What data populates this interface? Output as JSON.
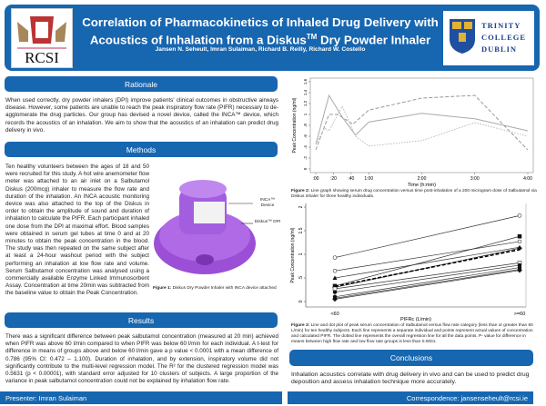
{
  "header": {
    "title_line1": "Correlation of Pharmacokinetics of Inhaled Drug Delivery with",
    "title_line2_pre": "Acoustics of Inhalation from a Diskus",
    "title_tm": "TM",
    "title_line2_post": " Dry Powder Inhaler",
    "authors": "Jansen N. Seheult, Imran Sulaiman, Richard B. Reilly, Richard W. Costello",
    "logo_left": "RCSI",
    "logo_right": [
      "TRINITY",
      "COLLEGE",
      "DUBLIN"
    ]
  },
  "rationale": {
    "heading": "Rationale",
    "text": "When used correctly, dry powder inhalers (DPI) improve patients' clinical outcomes in obstructive airways disease. However, some patients are unable to reach the peak inspiratory flow rate (PIFR) necessary to de-agglomerate the drug particles. Our group has devised a novel device, called the INCA™ device, which records the acoustics of an inhalation. We aim to show that the acoustics of an inhalation can predict drug delivery in vivo."
  },
  "methods": {
    "heading": "Methods",
    "text": "Ten healthy volunteers between the ages of 18 and 50 were recruited for this study. A hot wire anemometer flow meter was attached to an air inlet on a Salbutamol Diskus (200mcg) inhaler to measure the flow rate and duration of the inhalation. An INCA acoustic monitoring device was also attached to the top of the Diskus in order to obtain the amplitude of sound and duration of inhalation to calculate the PIFR. Each participant inhaled one dose from the DPI at maximal effort. Blood samples were obtained in serum gel tubes at time 0 and at 20 minutes to obtain the peak concentration in the blood. The study was then repeated on the same subject after at least a 24-hour washout period with the subject performing an inhalation at low flow rate and volume. Serum Salbutamol concentration was analysed using a commercially available Enzyme Linked Immunosorbent Assay. Concentration at time 20min was subtracted from the baseline value to obtain the Peak Concentration.",
    "label_inca": "INCA™ Device",
    "label_diskus": "Diskus™ DPI",
    "figure1_caption_bold": "Figure 1:",
    "figure1_caption": " Diskus Dry Powder Inhaler with INCA device attached"
  },
  "results": {
    "heading": "Results",
    "text": "There was a significant difference between peak salbutamol concentration (measured at 20 min) achieved when PIFR was above 60 l/min compared to when PIFR was below 60 l/min for each individual. A t-test for difference in means of groups above and below 60 l/min gave a p value < 0.0001 with a mean difference of 0.786 (95% CI: 0.472 – 1.100). Duration of inhalation, and by extension, inspiratory volume did not significantly contribute to the multi-level regression model. The R² for the clustered regression model was 0.5631 (p < 0.00001), with standard error adjusted for 10 clusters of subjects. A large proportion of the variance in peak salbutamol concentration could not be explained by inhalation flow rate."
  },
  "figure2_caption_bold": "Figure 2:",
  "figure2_caption": " Line graph showing serum drug concentration versus time post-inhalation of a 200 microgram dose of Salbutamol via Diskus inhaler for three healthy individuals.",
  "figure3_caption_bold": "Figure 3:",
  "figure3_caption": " Line and dot plot of peak serum concentration of Salbutamol versus flow rate category (less than or greater than 60 L/min) for ten healthy subjects. Each line represents a separate individual and points represent actual values of concentration and calculated PIFR. The dotted line represents the overall regression line for all the data points. P- value for difference in means between high flow rate and low flow rate groups is less than 0.0001.",
  "conclusions": {
    "heading": "Conclusions",
    "text": "Inhalation acoustics correlate with drug delivery in vivo and can be used to predict drug deposition and assess inhalation technique more accurately."
  },
  "footer": {
    "presenter": "Presenter: Imran Sulaiman",
    "correspondence": "Correspondence: jansenseheult@rcsi.ie"
  },
  "colors": {
    "brand_blue": "#1766b0",
    "inhaler_purple": "#9b4fd6"
  },
  "chart_data": [
    {
      "type": "line",
      "xlabel": "Time (h:mm)",
      "ylabel": "Peak Concentration (ng/ml)",
      "xlim": [
        0,
        240
      ],
      "ylim": [
        0,
        1.6
      ],
      "x_ticks": [
        0,
        20,
        40,
        60,
        120,
        180,
        240
      ],
      "x_tick_labels": [
        ":00",
        ":20",
        ":40",
        "1:00",
        "2:00",
        "3:00",
        "4:00"
      ],
      "y_ticks": [
        0,
        0.2,
        0.4,
        0.6,
        0.8,
        1,
        1.2,
        1.4,
        1.6
      ],
      "y_tick_labels": [
        "0",
        ".2",
        ".4",
        ".6",
        ".8",
        "1",
        "1.2",
        "1.4",
        "1.6"
      ],
      "series": [
        {
          "style": "solid",
          "x": [
            0,
            15,
            30,
            45,
            60,
            120,
            180,
            240
          ],
          "y": [
            0.45,
            1.35,
            0.95,
            0.62,
            0.86,
            1.02,
            0.92,
            0.7
          ]
        },
        {
          "style": "dashed",
          "x": [
            0,
            15,
            25,
            42,
            60,
            120,
            180,
            240
          ],
          "y": [
            0.35,
            1.0,
            1.0,
            0.82,
            1.08,
            1.3,
            1.35,
            0.35
          ]
        },
        {
          "style": "dotted",
          "x": [
            0,
            10,
            15,
            30,
            45,
            60,
            120,
            180,
            240
          ],
          "y": [
            0.45,
            0.75,
            0.7,
            1.15,
            0.6,
            0.42,
            0.52,
            0.85,
            0.6
          ]
        }
      ]
    },
    {
      "type": "line",
      "xlabel": "PIFRc (L/min)",
      "ylabel": "Peak Concentration (ng/ml)",
      "categories": [
        "<60",
        ">=60"
      ],
      "ylim": [
        0,
        2
      ],
      "y_ticks": [
        0,
        0.5,
        1,
        1.5,
        2
      ],
      "y_tick_labels": [
        "0",
        ".5",
        "1",
        "1.5",
        "2"
      ],
      "subjects": [
        [
          0.93,
          1.82
        ],
        [
          0.65,
          1.27
        ],
        [
          0.5,
          1.15
        ],
        [
          0.33,
          1.38
        ],
        [
          0.3,
          1.13
        ],
        [
          0.27,
          0.82
        ],
        [
          0.2,
          0.77
        ],
        [
          0.1,
          0.72
        ],
        [
          0.07,
          0.68
        ],
        [
          0.05,
          0.66
        ]
      ],
      "regression": [
        0.32,
        1.1
      ]
    }
  ]
}
